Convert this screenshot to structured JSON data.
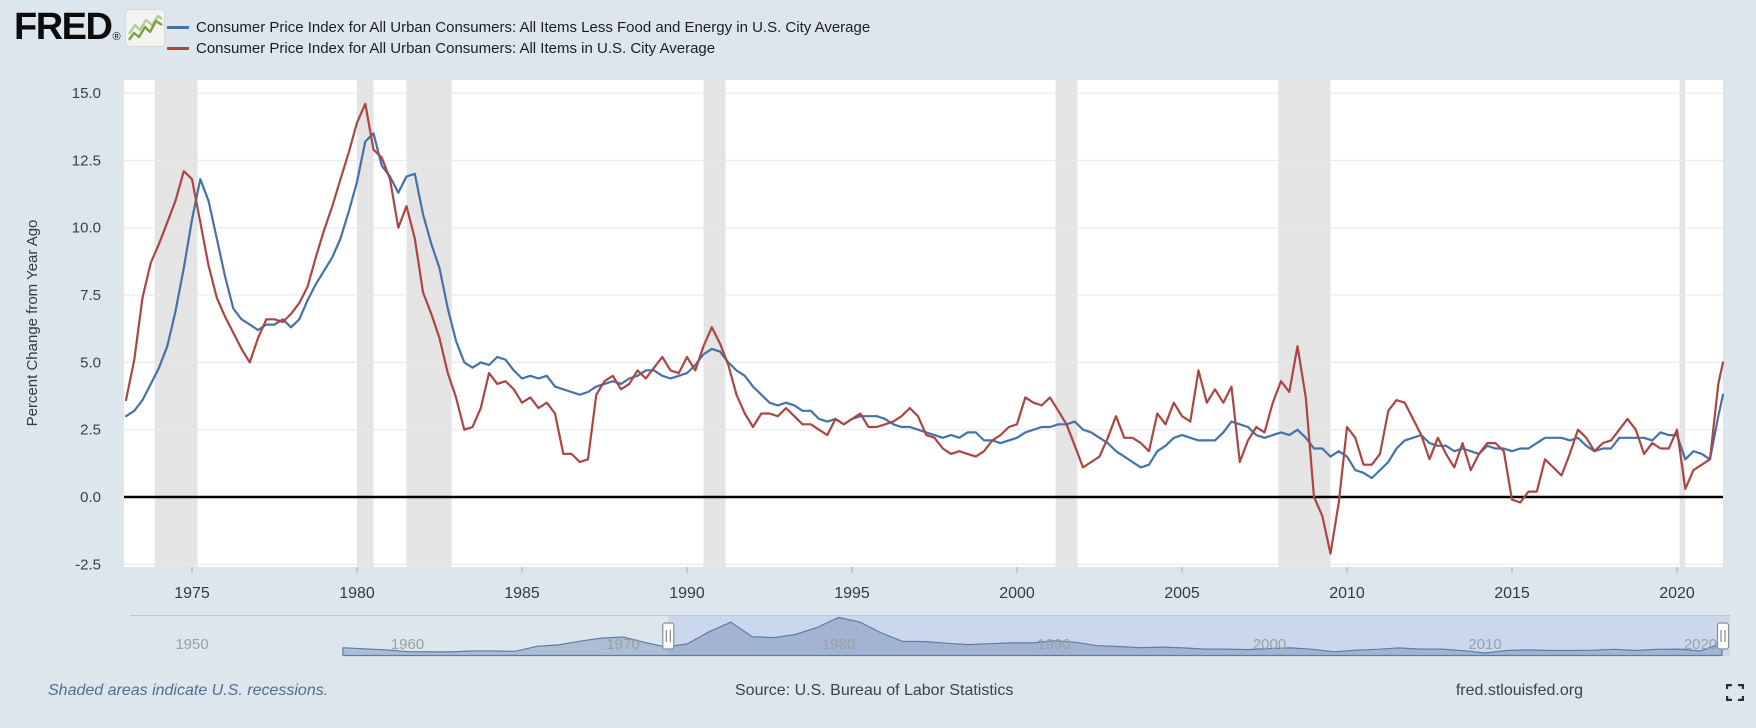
{
  "header": {
    "logo_text": "FRED",
    "logo_registered": "®"
  },
  "legend": [
    {
      "label": "Consumer Price Index for All Urban Consumers: All Items Less Food and Energy in U.S. City Average",
      "color": "#4572a7"
    },
    {
      "label": "Consumer Price Index for All Urban Consumers: All Items in U.S. City Average",
      "color": "#aa4643"
    }
  ],
  "chart_data": {
    "type": "line",
    "ylabel": "Percent Change from Year Ago",
    "ylim": [
      -2.6,
      15.5
    ],
    "x_range": [
      1972.94,
      2021.42
    ],
    "grid": "horizontal-only",
    "zero_line": true,
    "y_ticks": [
      {
        "label": "15.0",
        "value": 15.0
      },
      {
        "label": "12.5",
        "value": 12.5
      },
      {
        "label": "10.0",
        "value": 10.0
      },
      {
        "label": "7.5",
        "value": 7.5
      },
      {
        "label": "5.0",
        "value": 5.0
      },
      {
        "label": "2.5",
        "value": 2.5
      },
      {
        "label": "0.0",
        "value": 0.0
      },
      {
        "label": "-2.5",
        "value": -2.5
      }
    ],
    "x_ticks": [
      1975,
      1980,
      1985,
      1990,
      1995,
      2000,
      2005,
      2010,
      2015,
      2020
    ],
    "recessions": [
      [
        1973.87,
        1975.17
      ],
      [
        1980.0,
        1980.5
      ],
      [
        1981.5,
        1982.87
      ],
      [
        1990.5,
        1991.17
      ],
      [
        2001.17,
        2001.83
      ],
      [
        2007.92,
        2009.5
      ],
      [
        2020.08,
        2020.25
      ]
    ],
    "series": [
      {
        "name": "Consumer Price Index for All Urban Consumers: All Items Less Food and Energy in U.S. City Average",
        "color": "#4572a7",
        "x_start": 1973.0,
        "x_step": 0.25,
        "values": [
          3.0,
          3.2,
          3.6,
          4.2,
          4.8,
          5.6,
          6.9,
          8.5,
          10.3,
          11.8,
          11.0,
          9.6,
          8.2,
          7.0,
          6.6,
          6.4,
          6.2,
          6.4,
          6.4,
          6.6,
          6.3,
          6.6,
          7.3,
          7.9,
          8.4,
          8.9,
          9.6,
          10.6,
          11.7,
          13.2,
          13.5,
          12.3,
          11.9,
          11.3,
          11.9,
          12.0,
          10.5,
          9.4,
          8.5,
          7.0,
          5.8,
          5.0,
          4.8,
          5.0,
          4.9,
          5.2,
          5.1,
          4.7,
          4.4,
          4.5,
          4.4,
          4.5,
          4.1,
          4.0,
          3.9,
          3.8,
          3.9,
          4.1,
          4.2,
          4.3,
          4.2,
          4.4,
          4.5,
          4.7,
          4.7,
          4.5,
          4.4,
          4.5,
          4.6,
          4.9,
          5.3,
          5.5,
          5.4,
          5.0,
          4.7,
          4.5,
          4.1,
          3.8,
          3.5,
          3.4,
          3.5,
          3.4,
          3.2,
          3.2,
          2.9,
          2.8,
          2.9,
          2.7,
          2.9,
          3.0,
          3.0,
          3.0,
          2.9,
          2.7,
          2.6,
          2.6,
          2.5,
          2.4,
          2.3,
          2.2,
          2.3,
          2.2,
          2.4,
          2.4,
          2.1,
          2.1,
          2.0,
          2.1,
          2.2,
          2.4,
          2.5,
          2.6,
          2.6,
          2.7,
          2.7,
          2.8,
          2.5,
          2.4,
          2.2,
          2.0,
          1.7,
          1.5,
          1.3,
          1.1,
          1.2,
          1.7,
          1.9,
          2.2,
          2.3,
          2.2,
          2.1,
          2.1,
          2.1,
          2.4,
          2.8,
          2.7,
          2.6,
          2.3,
          2.2,
          2.3,
          2.4,
          2.3,
          2.5,
          2.2,
          1.8,
          1.8,
          1.5,
          1.7,
          1.5,
          1.0,
          0.9,
          0.7,
          1.0,
          1.3,
          1.8,
          2.1,
          2.2,
          2.3,
          2.0,
          1.9,
          1.9,
          1.7,
          1.8,
          1.7,
          1.6,
          1.9,
          1.8,
          1.8,
          1.7,
          1.8,
          1.8,
          2.0,
          2.2,
          2.2,
          2.2,
          2.1,
          2.2,
          1.9,
          1.7,
          1.8,
          1.8,
          2.2,
          2.2,
          2.2,
          2.2,
          2.1,
          2.4,
          2.3,
          2.3,
          1.4,
          1.7,
          1.6,
          1.4,
          3.0
        ],
        "extra_points": [
          [
            2021.42,
            3.8
          ]
        ]
      },
      {
        "name": "Consumer Price Index for All Urban Consumers: All Items in U.S. City Average",
        "color": "#aa4643",
        "x_start": 1973.0,
        "x_step": 0.25,
        "values": [
          3.6,
          5.1,
          7.4,
          8.7,
          9.4,
          10.2,
          11.0,
          12.1,
          11.8,
          10.2,
          8.6,
          7.4,
          6.7,
          6.1,
          5.5,
          5.0,
          5.9,
          6.6,
          6.6,
          6.5,
          6.8,
          7.2,
          7.8,
          8.9,
          9.9,
          10.8,
          11.8,
          12.8,
          13.9,
          14.6,
          12.9,
          12.6,
          11.8,
          10.0,
          10.8,
          9.6,
          7.6,
          6.8,
          5.9,
          4.6,
          3.7,
          2.5,
          2.6,
          3.3,
          4.6,
          4.2,
          4.3,
          4.0,
          3.5,
          3.7,
          3.3,
          3.5,
          3.1,
          1.6,
          1.6,
          1.3,
          1.4,
          3.8,
          4.3,
          4.5,
          4.0,
          4.2,
          4.7,
          4.4,
          4.8,
          5.2,
          4.7,
          4.6,
          5.2,
          4.7,
          5.6,
          6.3,
          5.7,
          4.9,
          3.8,
          3.1,
          2.6,
          3.1,
          3.1,
          3.0,
          3.3,
          3.0,
          2.7,
          2.7,
          2.5,
          2.3,
          2.9,
          2.7,
          2.9,
          3.1,
          2.6,
          2.6,
          2.7,
          2.8,
          3.0,
          3.3,
          3.0,
          2.3,
          2.2,
          1.8,
          1.6,
          1.7,
          1.6,
          1.5,
          1.7,
          2.1,
          2.3,
          2.6,
          2.7,
          3.7,
          3.5,
          3.4,
          3.7,
          3.2,
          2.7,
          1.9,
          1.1,
          1.3,
          1.5,
          2.2,
          3.0,
          2.2,
          2.2,
          2.0,
          1.7,
          3.1,
          2.7,
          3.5,
          3.0,
          2.8,
          4.7,
          3.5,
          4.0,
          3.5,
          4.1,
          1.3,
          2.1,
          2.6,
          2.4,
          3.5,
          4.3,
          3.9,
          5.6,
          3.7,
          0.0,
          -0.7,
          -2.1,
          -0.2,
          2.6,
          2.2,
          1.2,
          1.2,
          1.6,
          3.2,
          3.6,
          3.5,
          2.9,
          2.3,
          1.4,
          2.2,
          1.6,
          1.1,
          2.0,
          1.0,
          1.6,
          2.0,
          2.0,
          1.7,
          -0.1,
          -0.2,
          0.2,
          0.2,
          1.4,
          1.1,
          0.8,
          1.6,
          2.5,
          2.2,
          1.7,
          2.0,
          2.1,
          2.5,
          2.9,
          2.5,
          1.6,
          2.0,
          1.8,
          1.8,
          2.5,
          0.3,
          1.0,
          1.2,
          1.4,
          4.2
        ],
        "extra_points": [
          [
            2021.42,
            5.0
          ]
        ]
      }
    ],
    "navigator": {
      "ticks": [
        1950,
        1960,
        1970,
        1980,
        1990,
        2000,
        2010,
        2020
      ],
      "window": [
        1972.1,
        2021.42
      ],
      "x_start": 1957,
      "x_step": 1,
      "values": [
        2.8,
        2.4,
        2.0,
        1.4,
        1.3,
        1.3,
        1.6,
        1.6,
        1.5,
        3.3,
        3.8,
        5.1,
        6.2,
        6.6,
        4.7,
        3.0,
        4.2,
        8.5,
        11.9,
        6.7,
        6.4,
        7.5,
        10.0,
        13.6,
        11.9,
        8.0,
        5.0,
        5.0,
        4.4,
        3.9,
        4.2,
        4.5,
        4.5,
        5.3,
        4.7,
        3.5,
        3.2,
        2.8,
        3.0,
        2.7,
        2.3,
        2.3,
        2.1,
        2.5,
        2.7,
        2.2,
        1.3,
        1.9,
        2.2,
        2.7,
        2.3,
        2.3,
        1.7,
        0.9,
        1.8,
        2.0,
        1.8,
        1.8,
        1.9,
        2.2,
        1.8,
        2.2,
        2.3,
        1.6,
        4.5
      ]
    }
  },
  "footer": {
    "note": "Shaded areas indicate U.S. recessions.",
    "source": "Source: U.S. Bureau of Labor Statistics",
    "site": "fred.stlouisfed.org"
  }
}
